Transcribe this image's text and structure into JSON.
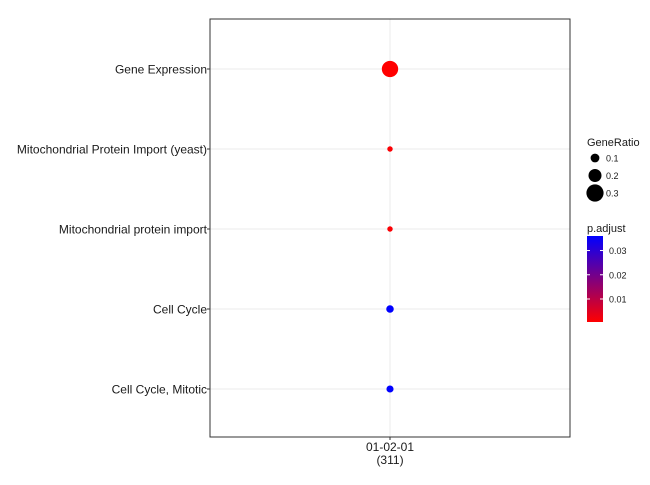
{
  "chart_data": {
    "type": "scatter",
    "x_categories": [
      "01-02-01\n(311)"
    ],
    "y_categories": [
      "Cell Cycle, Mitotic",
      "Cell Cycle",
      "Mitochondrial protein import",
      "Mitochondrial Protein Import (yeast)",
      "Gene Expression"
    ],
    "points": [
      {
        "term": "Gene Expression",
        "cluster": "01-02-01\n(311)",
        "gene_ratio": 0.28,
        "p_adjust": 0.0005
      },
      {
        "term": "Mitochondrial Protein Import (yeast)",
        "cluster": "01-02-01\n(311)",
        "gene_ratio": 0.02,
        "p_adjust": 0.001
      },
      {
        "term": "Mitochondrial protein import",
        "cluster": "01-02-01\n(311)",
        "gene_ratio": 0.02,
        "p_adjust": 0.001
      },
      {
        "term": "Cell Cycle",
        "cluster": "01-02-01\n(311)",
        "gene_ratio": 0.07,
        "p_adjust": 0.036
      },
      {
        "term": "Cell Cycle, Mitotic",
        "cluster": "01-02-01\n(311)",
        "gene_ratio": 0.06,
        "p_adjust": 0.036
      }
    ],
    "size_legend": {
      "title": "GeneRatio",
      "values": [
        0.1,
        0.2,
        0.3
      ],
      "labels": [
        "0.1",
        "0.2",
        "0.3"
      ]
    },
    "color_legend": {
      "title": "p.adjust",
      "range": [
        0.0005,
        0.036
      ],
      "ticks": [
        0.01,
        0.02,
        0.03
      ],
      "tick_labels": [
        "0.01",
        "0.02",
        "0.03"
      ],
      "low_color": "#ff0000",
      "high_color": "#0000ff"
    },
    "grid": true,
    "legend_position": "right",
    "xlabel": "",
    "ylabel": "",
    "title": ""
  }
}
